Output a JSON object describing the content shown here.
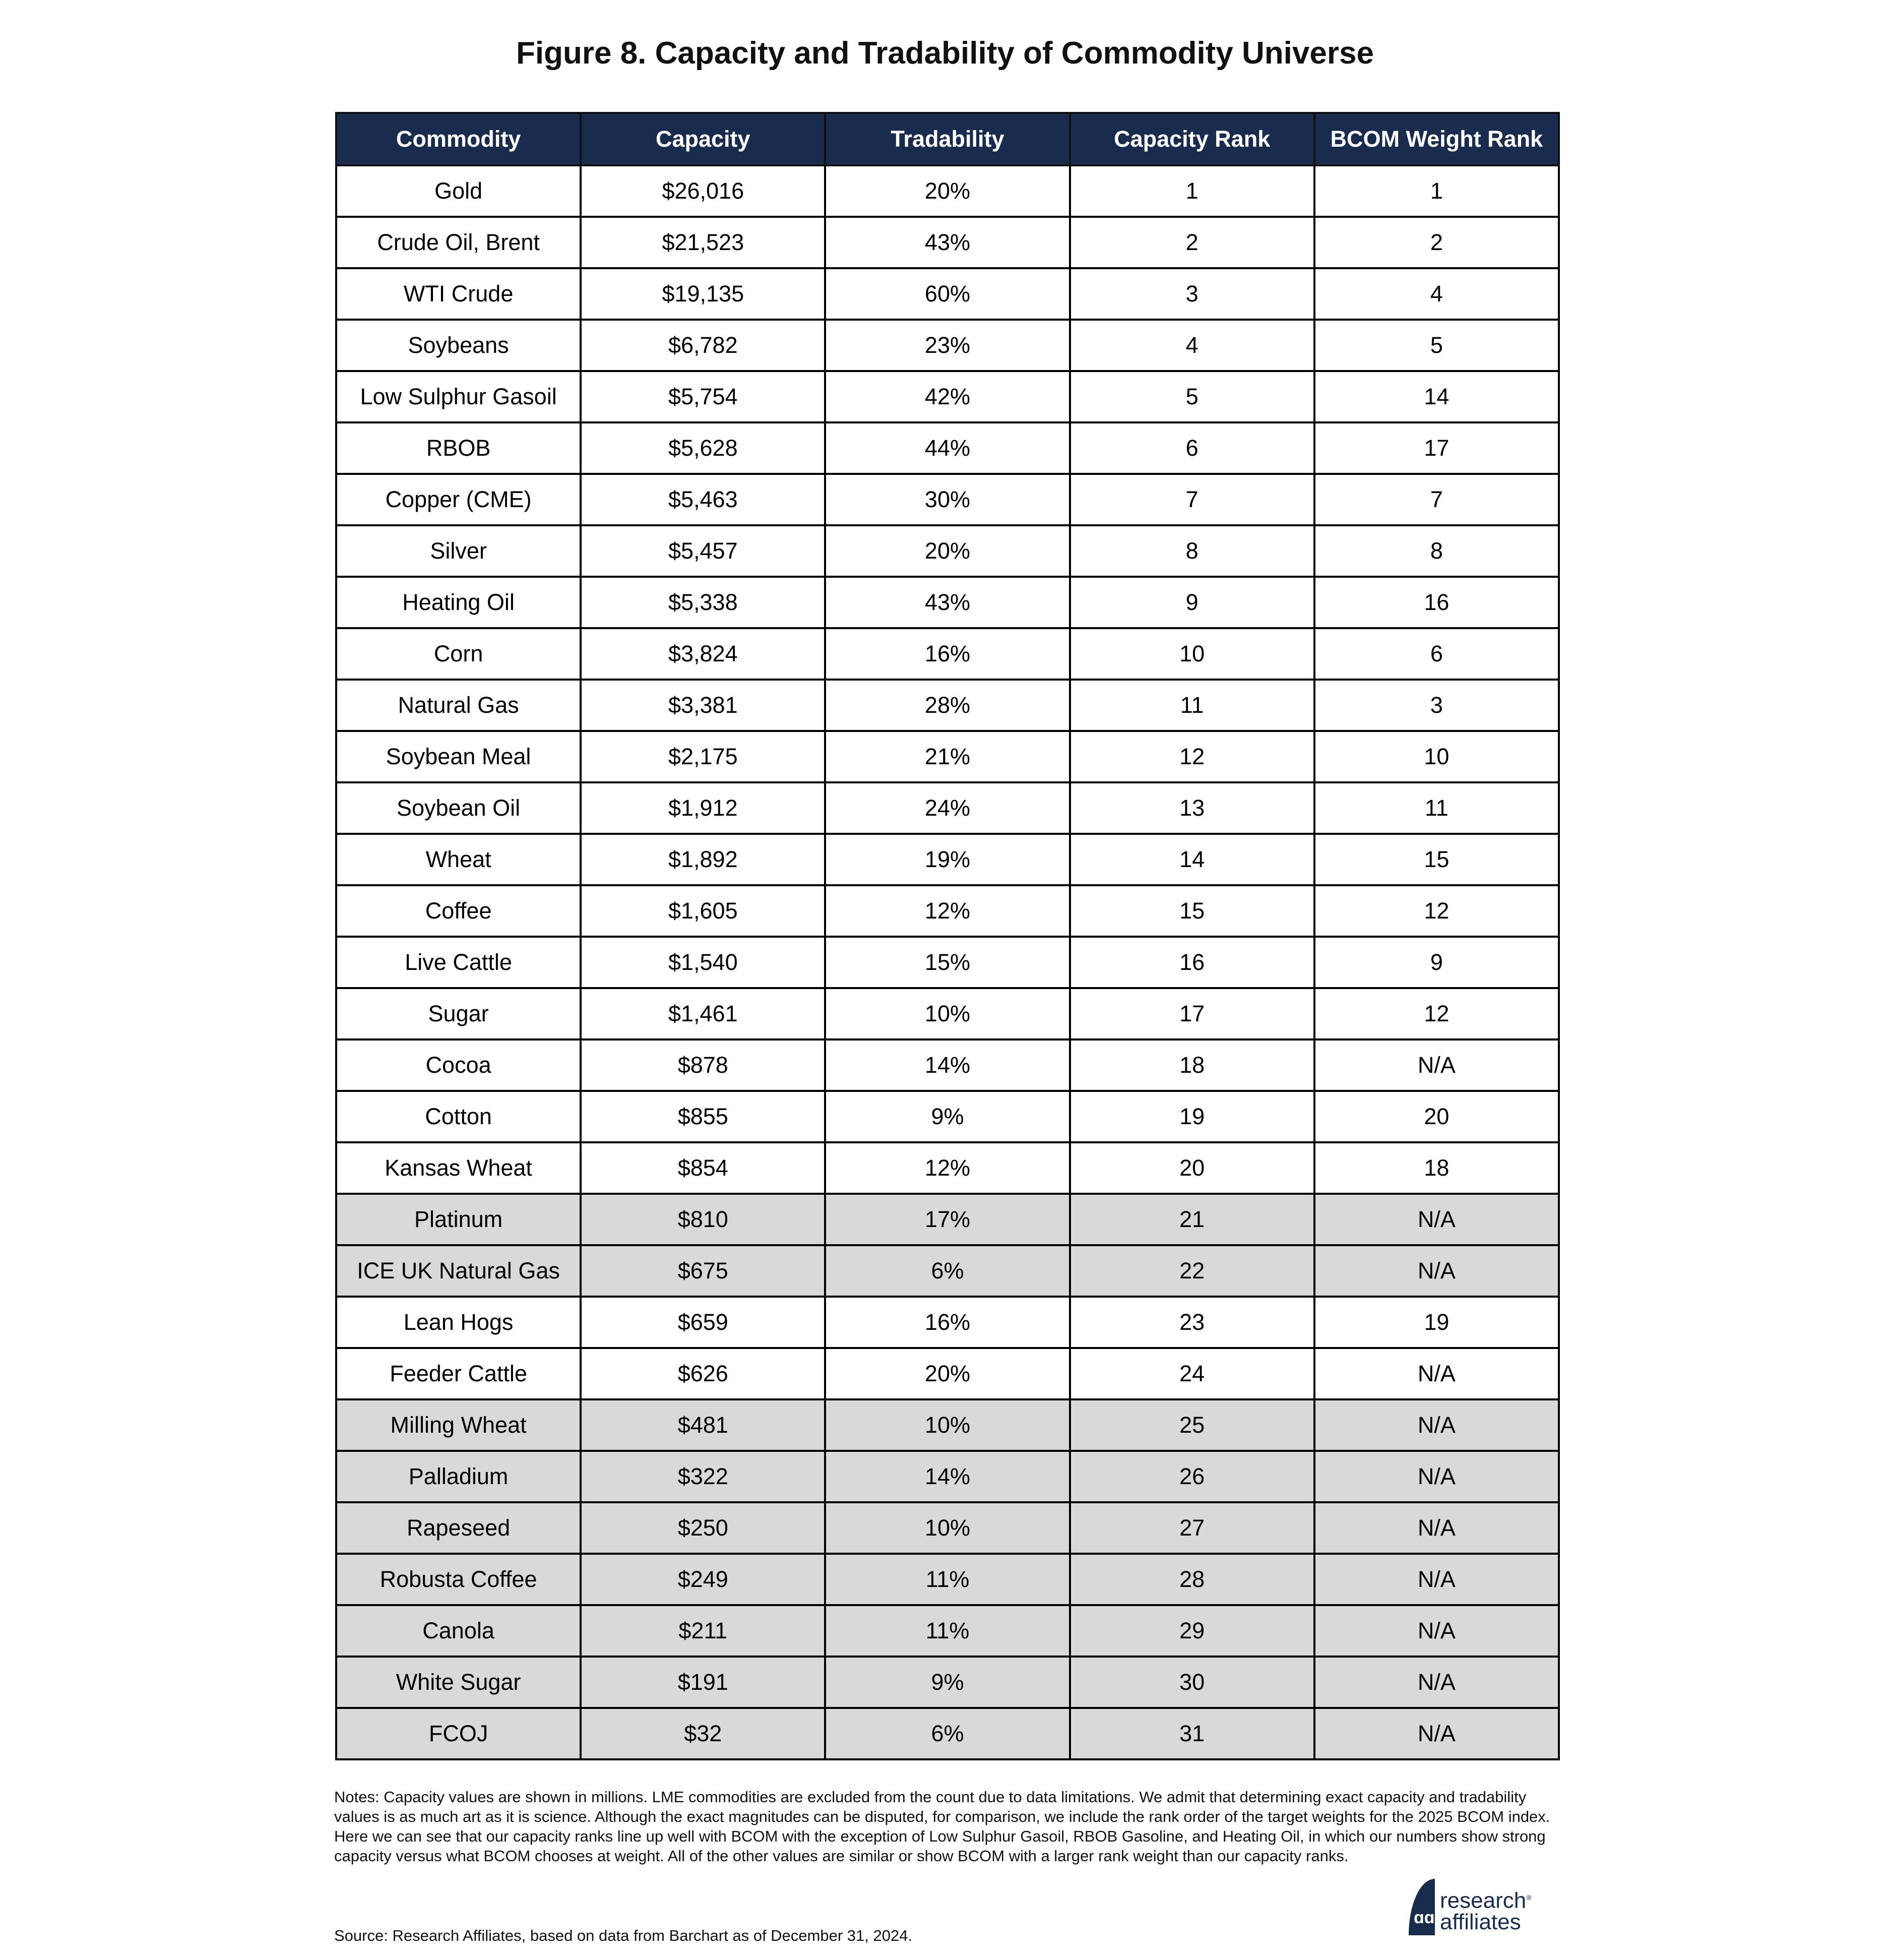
{
  "title": "Figure 8. Capacity and Tradability of Commodity Universe",
  "headers": [
    "Commodity",
    "Capacity",
    "Tradability",
    "Capacity Rank",
    "BCOM Weight Rank"
  ],
  "rows": [
    {
      "c": "Gold",
      "cap": "$26,016",
      "t": "20%",
      "r": "1",
      "b": "1",
      "shaded": false
    },
    {
      "c": "Crude Oil, Brent",
      "cap": "$21,523",
      "t": "43%",
      "r": "2",
      "b": "2",
      "shaded": false
    },
    {
      "c": "WTI Crude",
      "cap": "$19,135",
      "t": "60%",
      "r": "3",
      "b": "4",
      "shaded": false
    },
    {
      "c": "Soybeans",
      "cap": "$6,782",
      "t": "23%",
      "r": "4",
      "b": "5",
      "shaded": false
    },
    {
      "c": "Low Sulphur Gasoil",
      "cap": "$5,754",
      "t": "42%",
      "r": "5",
      "b": "14",
      "shaded": false
    },
    {
      "c": "RBOB",
      "cap": "$5,628",
      "t": "44%",
      "r": "6",
      "b": "17",
      "shaded": false
    },
    {
      "c": "Copper (CME)",
      "cap": "$5,463",
      "t": "30%",
      "r": "7",
      "b": "7",
      "shaded": false
    },
    {
      "c": "Silver",
      "cap": "$5,457",
      "t": "20%",
      "r": "8",
      "b": "8",
      "shaded": false
    },
    {
      "c": "Heating Oil",
      "cap": "$5,338",
      "t": "43%",
      "r": "9",
      "b": "16",
      "shaded": false
    },
    {
      "c": "Corn",
      "cap": "$3,824",
      "t": "16%",
      "r": "10",
      "b": "6",
      "shaded": false
    },
    {
      "c": "Natural Gas",
      "cap": "$3,381",
      "t": "28%",
      "r": "11",
      "b": "3",
      "shaded": false
    },
    {
      "c": "Soybean Meal",
      "cap": "$2,175",
      "t": "21%",
      "r": "12",
      "b": "10",
      "shaded": false
    },
    {
      "c": "Soybean Oil",
      "cap": "$1,912",
      "t": "24%",
      "r": "13",
      "b": "11",
      "shaded": false
    },
    {
      "c": "Wheat",
      "cap": "$1,892",
      "t": "19%",
      "r": "14",
      "b": "15",
      "shaded": false
    },
    {
      "c": "Coffee",
      "cap": "$1,605",
      "t": "12%",
      "r": "15",
      "b": "12",
      "shaded": false
    },
    {
      "c": "Live Cattle",
      "cap": "$1,540",
      "t": "15%",
      "r": "16",
      "b": "9",
      "shaded": false
    },
    {
      "c": "Sugar",
      "cap": "$1,461",
      "t": "10%",
      "r": "17",
      "b": "12",
      "shaded": false
    },
    {
      "c": "Cocoa",
      "cap": "$878",
      "t": "14%",
      "r": "18",
      "b": "N/A",
      "shaded": false
    },
    {
      "c": "Cotton",
      "cap": "$855",
      "t": "9%",
      "r": "19",
      "b": "20",
      "shaded": false
    },
    {
      "c": "Kansas Wheat",
      "cap": "$854",
      "t": "12%",
      "r": "20",
      "b": "18",
      "shaded": false
    },
    {
      "c": "Platinum",
      "cap": "$810",
      "t": "17%",
      "r": "21",
      "b": "N/A",
      "shaded": true
    },
    {
      "c": "ICE UK Natural Gas",
      "cap": "$675",
      "t": "6%",
      "r": "22",
      "b": "N/A",
      "shaded": true
    },
    {
      "c": "Lean Hogs",
      "cap": "$659",
      "t": "16%",
      "r": "23",
      "b": "19",
      "shaded": false
    },
    {
      "c": "Feeder Cattle",
      "cap": "$626",
      "t": "20%",
      "r": "24",
      "b": "N/A",
      "shaded": false
    },
    {
      "c": "Milling Wheat",
      "cap": "$481",
      "t": "10%",
      "r": "25",
      "b": "N/A",
      "shaded": true
    },
    {
      "c": "Palladium",
      "cap": "$322",
      "t": "14%",
      "r": "26",
      "b": "N/A",
      "shaded": true
    },
    {
      "c": "Rapeseed",
      "cap": "$250",
      "t": "10%",
      "r": "27",
      "b": "N/A",
      "shaded": true
    },
    {
      "c": "Robusta Coffee",
      "cap": "$249",
      "t": "11%",
      "r": "28",
      "b": "N/A",
      "shaded": true
    },
    {
      "c": "Canola",
      "cap": "$211",
      "t": "11%",
      "r": "29",
      "b": "N/A",
      "shaded": true
    },
    {
      "c": "White Sugar",
      "cap": "$191",
      "t": "9%",
      "r": "30",
      "b": "N/A",
      "shaded": true
    },
    {
      "c": "FCOJ",
      "cap": "$32",
      "t": "6%",
      "r": "31",
      "b": "N/A",
      "shaded": true
    }
  ],
  "notes": "Notes: Capacity values are shown in millions. LME commodities are excluded from the count due to data limitations. We admit that determining exact capacity and tradability values is as much art as it is science. Although the exact magnitudes can be disputed, for comparison, we include the rank order of the target weights for the 2025 BCOM index. Here we can see that our capacity ranks line up well with BCOM with the exception of Low Sulphur Gasoil, RBOB Gasoline, and Heating Oil, in which our numbers show strong capacity versus what BCOM chooses at weight. All of the other values are similar or show BCOM with a larger rank weight than our capacity ranks.",
  "source": "Source: Research Affiliates, based on data from Barchart as of December 31, 2024.",
  "logo": {
    "line1": "research",
    "line2": "affiliates",
    "registered": "®",
    "mark": "ra"
  },
  "colors": {
    "header_bg": "#1a2c4e",
    "shaded_row": "#d9d9d9"
  }
}
